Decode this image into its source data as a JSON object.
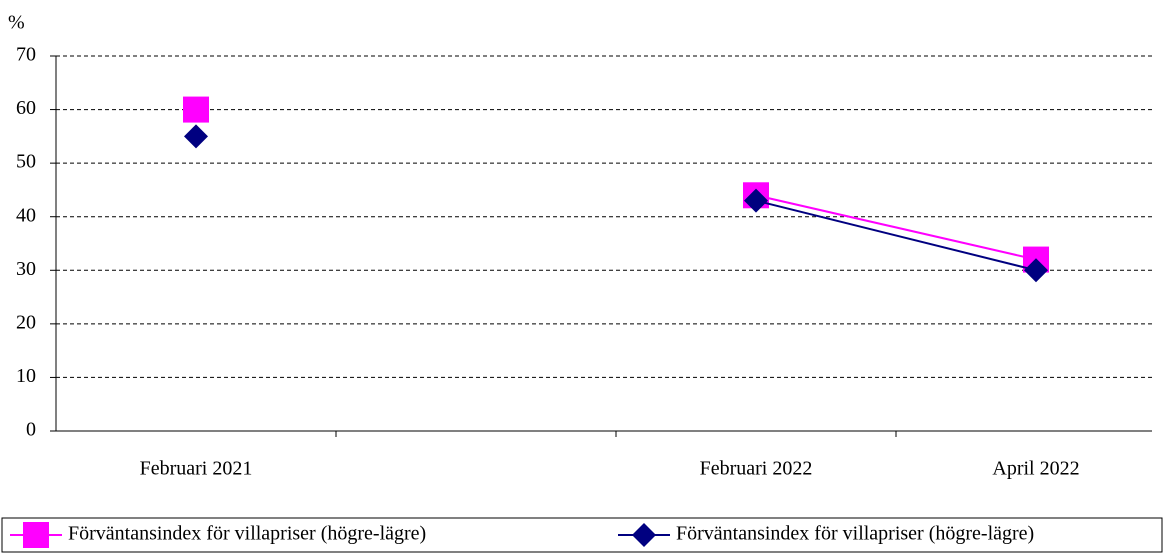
{
  "chart_data": {
    "type": "line",
    "y_label": "%",
    "categories": [
      "Februari 2021",
      null,
      "Februari 2022",
      "April 2022"
    ],
    "series": [
      {
        "name": "Förväntansindex för villapriser (högre-lägre)",
        "color": "#ff00ff",
        "marker": "square",
        "values": [
          60,
          null,
          44,
          32
        ]
      },
      {
        "name": "Förväntansindex för villapriser (högre-lägre)",
        "color": "#000080",
        "marker": "diamond",
        "values": [
          55,
          null,
          43,
          30
        ]
      }
    ],
    "ylim": [
      0,
      70
    ],
    "yticks": [
      0,
      10,
      20,
      30,
      40,
      50,
      60,
      70
    ],
    "grid": true,
    "legend": "bottom"
  }
}
